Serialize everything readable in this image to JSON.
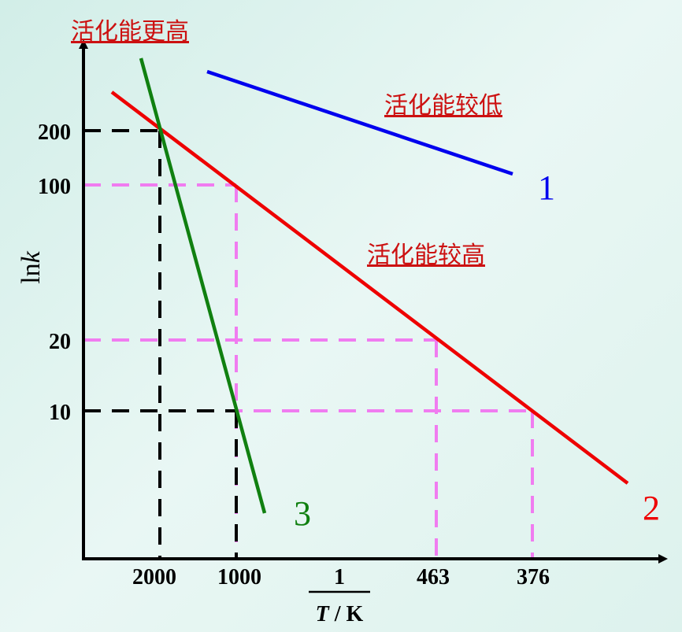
{
  "chart_data": {
    "type": "line",
    "title": "",
    "xlabel_numerator": "1",
    "xlabel_denominator_T": "T",
    "xlabel_denominator_sep": " / ",
    "xlabel_denominator_K": "K",
    "ylabel_main": "ln",
    "ylabel_k": "k",
    "x_tick_labels": [
      "2000",
      "1000",
      "463",
      "376"
    ],
    "y_tick_labels": [
      "200",
      "100",
      "20",
      "10"
    ],
    "series": [
      {
        "name": "1",
        "color": "#0000ee"
      },
      {
        "name": "2",
        "color": "#ee0000"
      },
      {
        "name": "3",
        "color": "#108010"
      }
    ],
    "annotations": [
      {
        "text": "活化能更高",
        "color": "#cc1111"
      },
      {
        "text": "活化能较低",
        "color": "#cc1111"
      },
      {
        "text": "活化能较高",
        "color": "#cc1111"
      }
    ],
    "guide_colors": {
      "black": "#000000",
      "pink": "#f07cf0"
    },
    "grid": false,
    "legend": "none"
  }
}
